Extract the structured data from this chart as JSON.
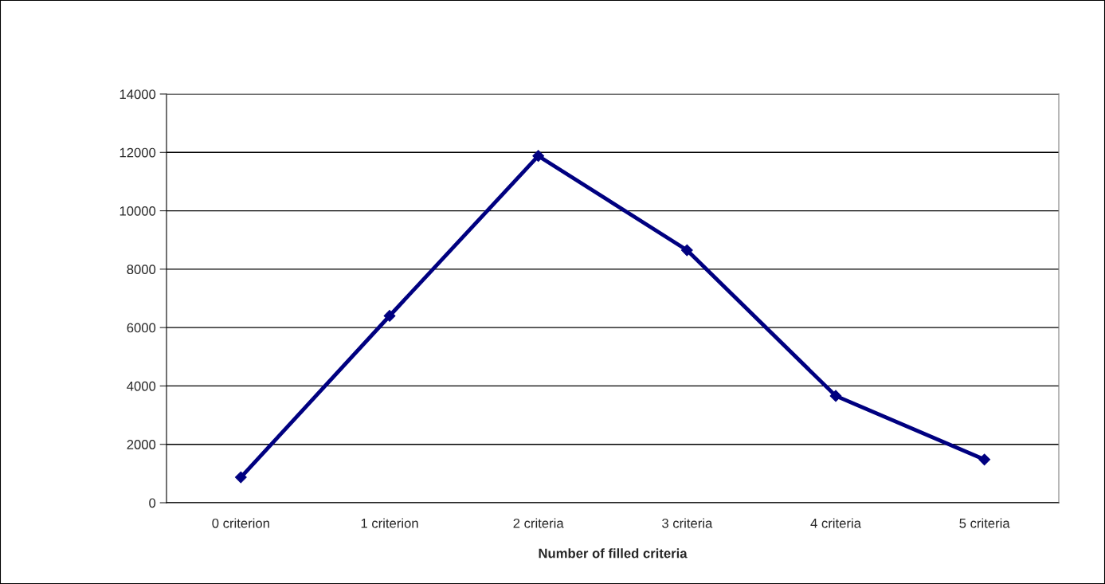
{
  "chart_data": {
    "type": "line",
    "xlabel": "Number of filled criteria",
    "categories": [
      "0 criterion",
      "1 criterion",
      "2 criteria",
      "3 criteria",
      "4 criteria",
      "5 criteria"
    ],
    "series": [
      {
        "color": "#000080",
        "values": [
          870,
          6400,
          11880,
          8650,
          3660,
          1480
        ]
      }
    ],
    "ylim": [
      0,
      14000
    ],
    "yticks": [
      0,
      2000,
      4000,
      6000,
      8000,
      10000,
      12000,
      14000
    ],
    "grid": "y",
    "marker": "diamond",
    "line_style": "solid",
    "legend": false
  }
}
